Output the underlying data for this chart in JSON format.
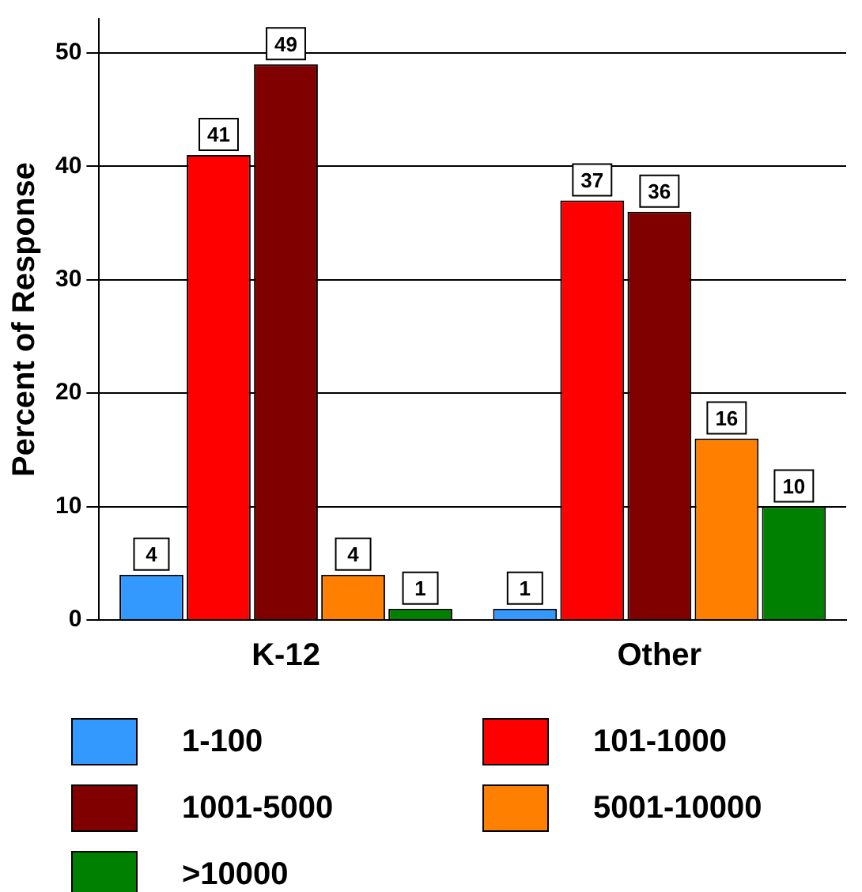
{
  "chart_data": {
    "type": "bar",
    "ylabel": "Percent of Response",
    "categories": [
      "K-12",
      "Other"
    ],
    "series": [
      {
        "name": "1-100",
        "color": "#3399ff",
        "values": [
          4,
          1
        ]
      },
      {
        "name": "101-1000",
        "color": "#ff0000",
        "values": [
          41,
          37
        ]
      },
      {
        "name": "1001-5000",
        "color": "#800000",
        "values": [
          49,
          36
        ]
      },
      {
        "name": "5001-10000",
        "color": "#ff8000",
        "values": [
          4,
          16
        ]
      },
      {
        "name": ">10000",
        "color": "#008000",
        "values": [
          1,
          10
        ]
      }
    ],
    "ylim": [
      0,
      53
    ],
    "yticks": [
      0,
      10,
      20,
      30,
      40,
      50
    ],
    "grid": "y",
    "legend": "bottom",
    "data_labels": true
  }
}
